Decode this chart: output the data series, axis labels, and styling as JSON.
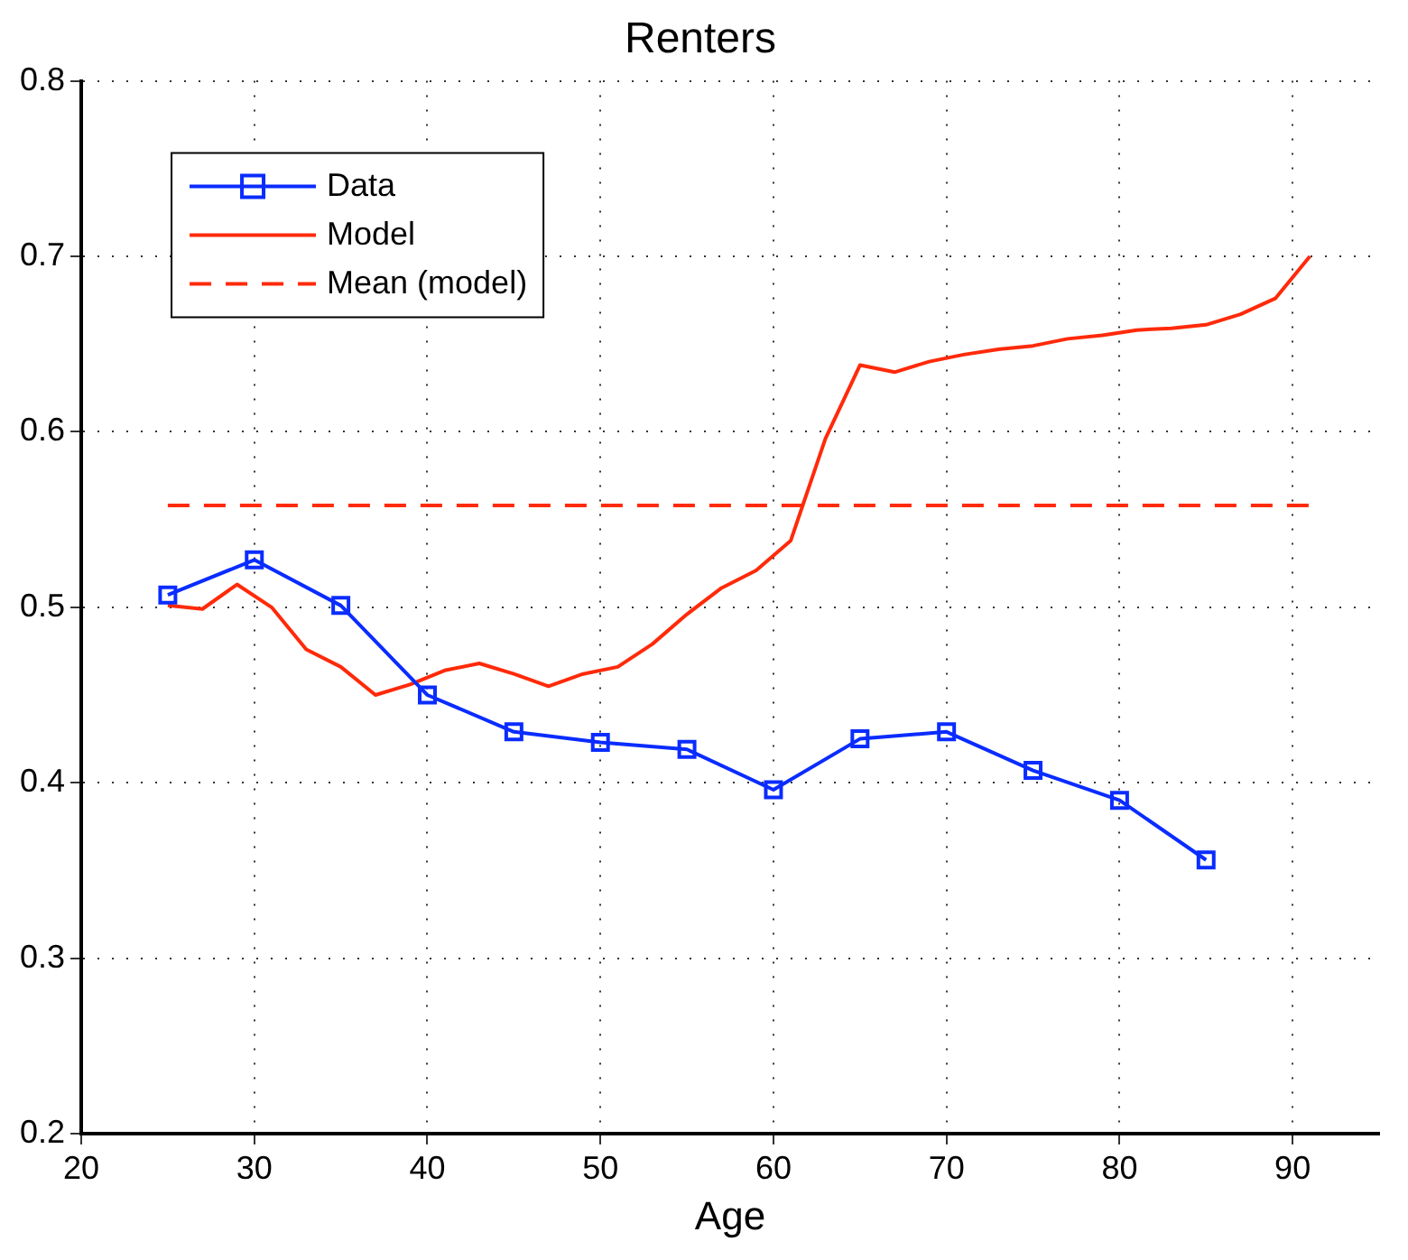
{
  "chart_data": {
    "type": "line",
    "title": "Renters",
    "xlabel": "Age",
    "xlim": [
      20,
      95
    ],
    "xticks": [
      20,
      30,
      40,
      50,
      60,
      70,
      80,
      90
    ],
    "ylim": [
      0.2,
      0.8
    ],
    "yticks": [
      0.2,
      0.3,
      0.4,
      0.5,
      0.6,
      0.7,
      0.8
    ],
    "grid": true,
    "legend": "top left",
    "series": [
      {
        "name": "Data",
        "color": "#0a2cff",
        "marker": "square",
        "line_style": "solid",
        "x": [
          25,
          30,
          35,
          40,
          45,
          50,
          55,
          60,
          65,
          70,
          75,
          80,
          85
        ],
        "values": [
          0.507,
          0.527,
          0.501,
          0.45,
          0.429,
          0.423,
          0.419,
          0.396,
          0.425,
          0.429,
          0.407,
          0.39,
          0.356
        ]
      },
      {
        "name": "Model",
        "color": "#ff2a0a",
        "marker": "none",
        "line_style": "solid",
        "x": [
          25,
          27,
          29,
          31,
          33,
          35,
          37,
          39,
          41,
          43,
          45,
          47,
          49,
          51,
          53,
          55,
          57,
          59,
          61,
          63,
          65,
          67,
          69,
          71,
          73,
          75,
          77,
          79,
          81,
          83,
          85,
          87,
          89,
          91
        ],
        "values": [
          0.501,
          0.499,
          0.513,
          0.5,
          0.476,
          0.466,
          0.45,
          0.456,
          0.464,
          0.468,
          0.462,
          0.455,
          0.462,
          0.466,
          0.479,
          0.496,
          0.511,
          0.521,
          0.538,
          0.596,
          0.638,
          0.634,
          0.64,
          0.644,
          0.647,
          0.649,
          0.653,
          0.655,
          0.658,
          0.659,
          0.661,
          0.667,
          0.676,
          0.7
        ]
      },
      {
        "name": "Mean (model)",
        "color": "#ff2a0a",
        "marker": "none",
        "line_style": "dashed",
        "x": [
          25,
          91
        ],
        "values": [
          0.558,
          0.558
        ]
      }
    ]
  }
}
